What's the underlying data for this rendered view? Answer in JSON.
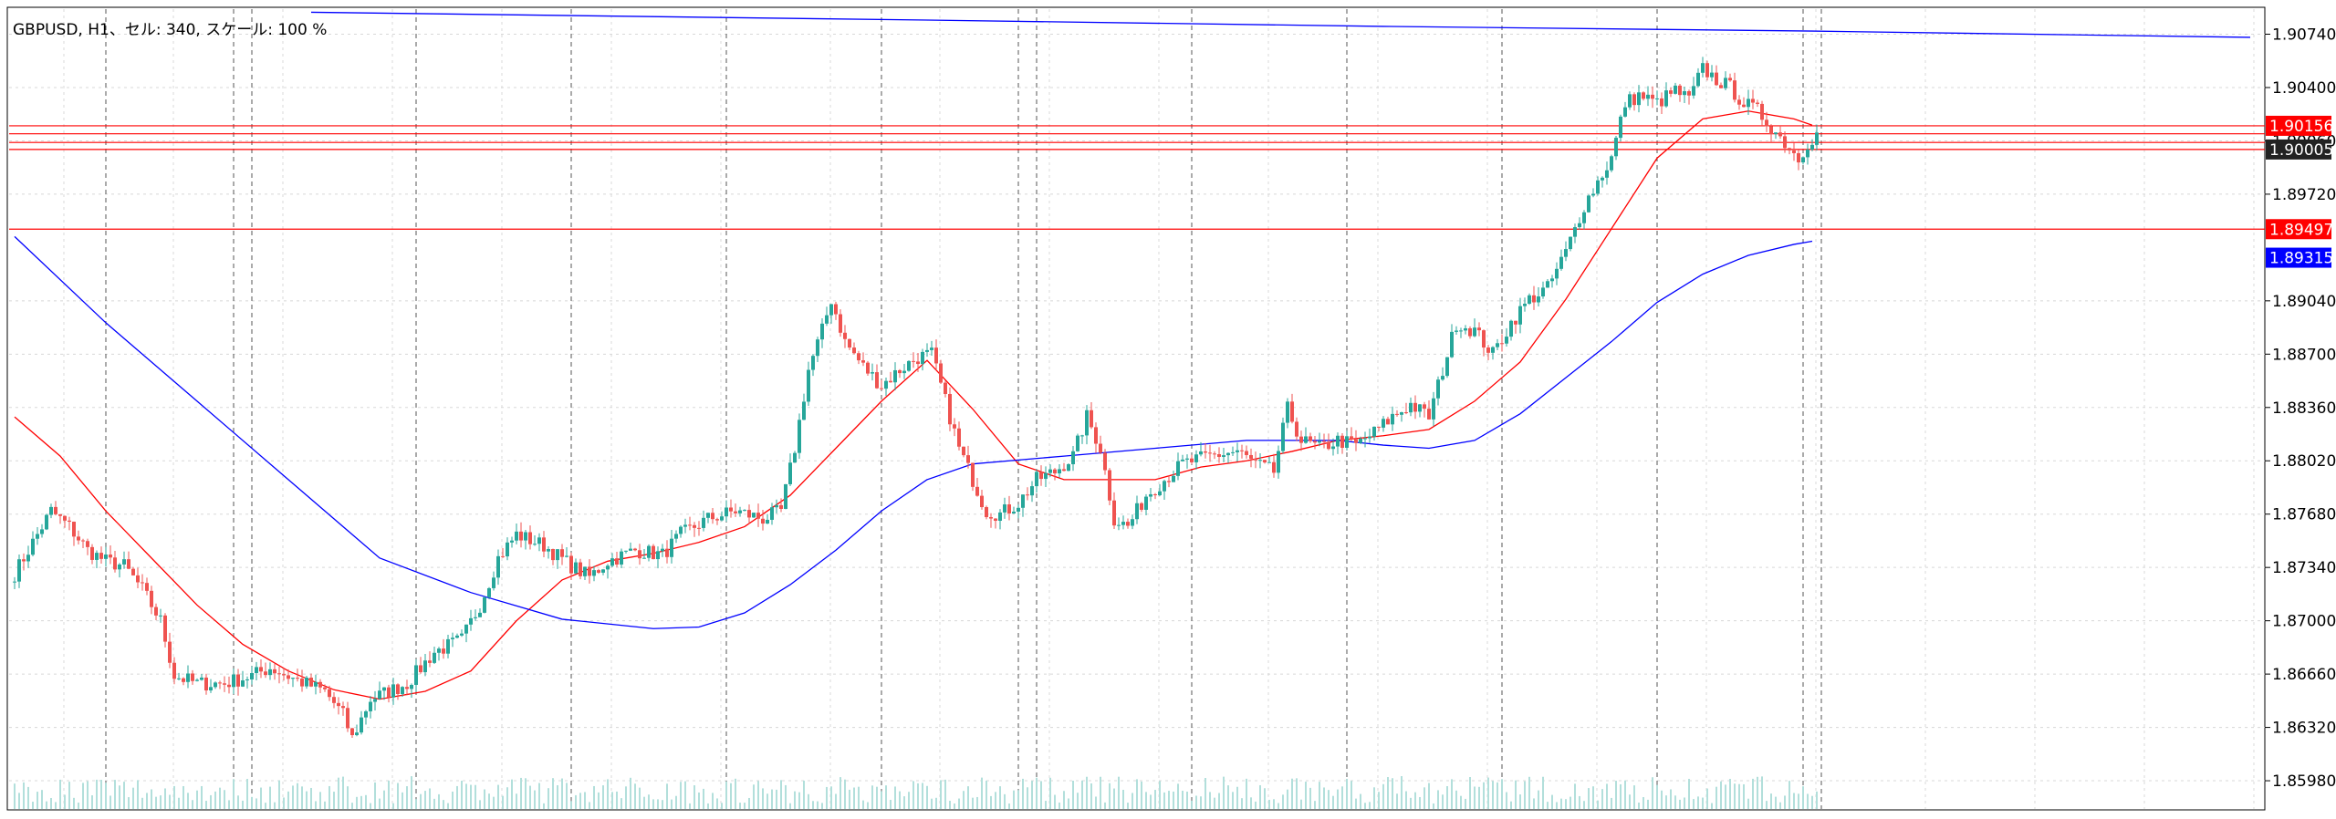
{
  "window": {
    "title": "GBPUSD, H1、セル: 340, スケール: 100 %"
  },
  "colors": {
    "background": "#ffffff",
    "grid": "#d8d8d8",
    "bull": "#26a69a",
    "bear": "#ef5350",
    "ma_fast": "#ff0000",
    "ma_slow": "#0000ff",
    "hline": "#ff0000",
    "tag_red": "#ff0000",
    "tag_black": "#222222",
    "tag_blue": "#0000ff",
    "period_sep": "#555555",
    "volume": "#b2dfdb"
  },
  "chart_data": {
    "type": "candlestick",
    "symbol": "GBPUSD",
    "timeframe": "H1",
    "ylim": [
      1.858,
      1.909
    ],
    "y_ticks": [
      "1.90740",
      "1.90400",
      "1.90060",
      "1.89720",
      "1.89040",
      "1.88700",
      "1.88360",
      "1.88020",
      "1.87680",
      "1.87340",
      "1.87000",
      "1.86660",
      "1.86320",
      "1.85980"
    ],
    "price_tags": [
      {
        "label": "1.90156",
        "value": 1.90156,
        "color": "red"
      },
      {
        "label": "1.90005",
        "value": 1.90005,
        "color": "black"
      },
      {
        "label": "1.89497",
        "value": 1.89497,
        "color": "red"
      },
      {
        "label": "1.89315",
        "value": 1.89315,
        "color": "blue"
      }
    ],
    "horizontal_lines": [
      1.90156,
      1.90105,
      1.9005,
      1.90005,
      1.89497
    ],
    "close_path": [
      [
        0,
        1.873
      ],
      [
        4,
        1.875
      ],
      [
        8,
        1.877
      ],
      [
        12,
        1.876
      ],
      [
        16,
        1.8745
      ],
      [
        20,
        1.8738
      ],
      [
        24,
        1.8735
      ],
      [
        28,
        1.872
      ],
      [
        32,
        1.87
      ],
      [
        35,
        1.8665
      ],
      [
        40,
        1.866
      ],
      [
        46,
        1.866
      ],
      [
        52,
        1.8665
      ],
      [
        56,
        1.867
      ],
      [
        62,
        1.8662
      ],
      [
        68,
        1.8655
      ],
      [
        72,
        1.864
      ],
      [
        74,
        1.8625
      ],
      [
        78,
        1.865
      ],
      [
        86,
        1.866
      ],
      [
        92,
        1.868
      ],
      [
        98,
        1.8688
      ],
      [
        102,
        1.871
      ],
      [
        106,
        1.874
      ],
      [
        110,
        1.8755
      ],
      [
        116,
        1.8748
      ],
      [
        122,
        1.8735
      ],
      [
        126,
        1.8728
      ],
      [
        130,
        1.8738
      ],
      [
        136,
        1.8745
      ],
      [
        142,
        1.8742
      ],
      [
        146,
        1.8755
      ],
      [
        152,
        1.8765
      ],
      [
        158,
        1.877
      ],
      [
        164,
        1.8765
      ],
      [
        168,
        1.877
      ],
      [
        171,
        1.881
      ],
      [
        174,
        1.886
      ],
      [
        177,
        1.8885
      ],
      [
        179,
        1.8905
      ],
      [
        182,
        1.8878
      ],
      [
        186,
        1.8862
      ],
      [
        190,
        1.885
      ],
      [
        194,
        1.886
      ],
      [
        198,
        1.8868
      ],
      [
        201,
        1.887
      ],
      [
        204,
        1.884
      ],
      [
        207,
        1.881
      ],
      [
        210,
        1.879
      ],
      [
        213,
        1.877
      ],
      [
        216,
        1.8768
      ],
      [
        220,
        1.8775
      ],
      [
        224,
        1.879
      ],
      [
        228,
        1.8795
      ],
      [
        232,
        1.8805
      ],
      [
        235,
        1.883
      ],
      [
        238,
        1.881
      ],
      [
        241,
        1.8765
      ],
      [
        244,
        1.876
      ],
      [
        248,
        1.878
      ],
      [
        252,
        1.879
      ],
      [
        256,
        1.88
      ],
      [
        262,
        1.8805
      ],
      [
        268,
        1.8808
      ],
      [
        272,
        1.88
      ],
      [
        276,
        1.8795
      ],
      [
        279,
        1.8835
      ],
      [
        282,
        1.8815
      ],
      [
        286,
        1.881
      ],
      [
        290,
        1.8815
      ],
      [
        294,
        1.8812
      ],
      [
        298,
        1.882
      ],
      [
        302,
        1.883
      ],
      [
        306,
        1.8838
      ],
      [
        310,
        1.883
      ],
      [
        313,
        1.886
      ],
      [
        316,
        1.889
      ],
      [
        320,
        1.8885
      ],
      [
        324,
        1.887
      ],
      [
        328,
        1.889
      ],
      [
        332,
        1.8905
      ],
      [
        336,
        1.8912
      ],
      [
        340,
        1.8935
      ],
      [
        344,
        1.8965
      ],
      [
        347,
        1.898
      ],
      [
        350,
        1.8995
      ],
      [
        353,
        1.903
      ],
      [
        356,
        1.9035
      ],
      [
        360,
        1.903
      ],
      [
        364,
        1.9038
      ],
      [
        367,
        1.9032
      ],
      [
        370,
        1.9052
      ],
      [
        373,
        1.9045
      ],
      [
        376,
        1.904
      ],
      [
        379,
        1.903
      ],
      [
        382,
        1.9025
      ],
      [
        385,
        1.9015
      ],
      [
        388,
        1.9005
      ],
      [
        391,
        1.8995
      ],
      [
        393,
        1.9005
      ],
      [
        395,
        1.901
      ]
    ],
    "ma_fast_path": [
      [
        0,
        1.883
      ],
      [
        10,
        1.8805
      ],
      [
        20,
        1.877
      ],
      [
        30,
        1.874
      ],
      [
        40,
        1.871
      ],
      [
        50,
        1.8685
      ],
      [
        60,
        1.8668
      ],
      [
        70,
        1.8656
      ],
      [
        80,
        1.865
      ],
      [
        90,
        1.8655
      ],
      [
        100,
        1.8668
      ],
      [
        110,
        1.87
      ],
      [
        120,
        1.8726
      ],
      [
        130,
        1.8738
      ],
      [
        140,
        1.8743
      ],
      [
        150,
        1.875
      ],
      [
        160,
        1.876
      ],
      [
        170,
        1.878
      ],
      [
        180,
        1.881
      ],
      [
        190,
        1.884
      ],
      [
        200,
        1.8866
      ],
      [
        210,
        1.8835
      ],
      [
        220,
        1.88
      ],
      [
        230,
        1.879
      ],
      [
        240,
        1.879
      ],
      [
        250,
        1.879
      ],
      [
        260,
        1.8798
      ],
      [
        270,
        1.8802
      ],
      [
        280,
        1.8808
      ],
      [
        290,
        1.8815
      ],
      [
        300,
        1.8818
      ],
      [
        310,
        1.8822
      ],
      [
        320,
        1.884
      ],
      [
        330,
        1.8865
      ],
      [
        340,
        1.8905
      ],
      [
        350,
        1.895
      ],
      [
        360,
        1.8995
      ],
      [
        370,
        1.902
      ],
      [
        380,
        1.9025
      ],
      [
        390,
        1.902
      ],
      [
        394,
        1.9016
      ]
    ],
    "ma_slow_path": [
      [
        0,
        1.8945
      ],
      [
        20,
        1.889
      ],
      [
        40,
        1.884
      ],
      [
        60,
        1.879
      ],
      [
        80,
        1.874
      ],
      [
        100,
        1.8718
      ],
      [
        120,
        1.8701
      ],
      [
        140,
        1.8695
      ],
      [
        150,
        1.8696
      ],
      [
        160,
        1.8705
      ],
      [
        170,
        1.8723
      ],
      [
        180,
        1.8745
      ],
      [
        190,
        1.877
      ],
      [
        200,
        1.879
      ],
      [
        210,
        1.88
      ],
      [
        230,
        1.8805
      ],
      [
        250,
        1.881
      ],
      [
        270,
        1.8815
      ],
      [
        290,
        1.8815
      ],
      [
        300,
        1.8812
      ],
      [
        310,
        1.881
      ],
      [
        320,
        1.8815
      ],
      [
        330,
        1.8832
      ],
      [
        340,
        1.8855
      ],
      [
        350,
        1.8878
      ],
      [
        360,
        1.8903
      ],
      [
        370,
        1.8921
      ],
      [
        380,
        1.8933
      ],
      [
        390,
        1.894
      ],
      [
        394,
        1.8942
      ]
    ],
    "long_ma_path": [
      [
        65,
        1.9088
      ],
      [
        200,
        1.9083
      ],
      [
        300,
        1.9079
      ],
      [
        394,
        1.9076
      ],
      [
        490,
        1.9072
      ]
    ],
    "period_separators": [
      20,
      48,
      52,
      88,
      122,
      156,
      190,
      220,
      224,
      258,
      292,
      326,
      360,
      392,
      396
    ]
  }
}
